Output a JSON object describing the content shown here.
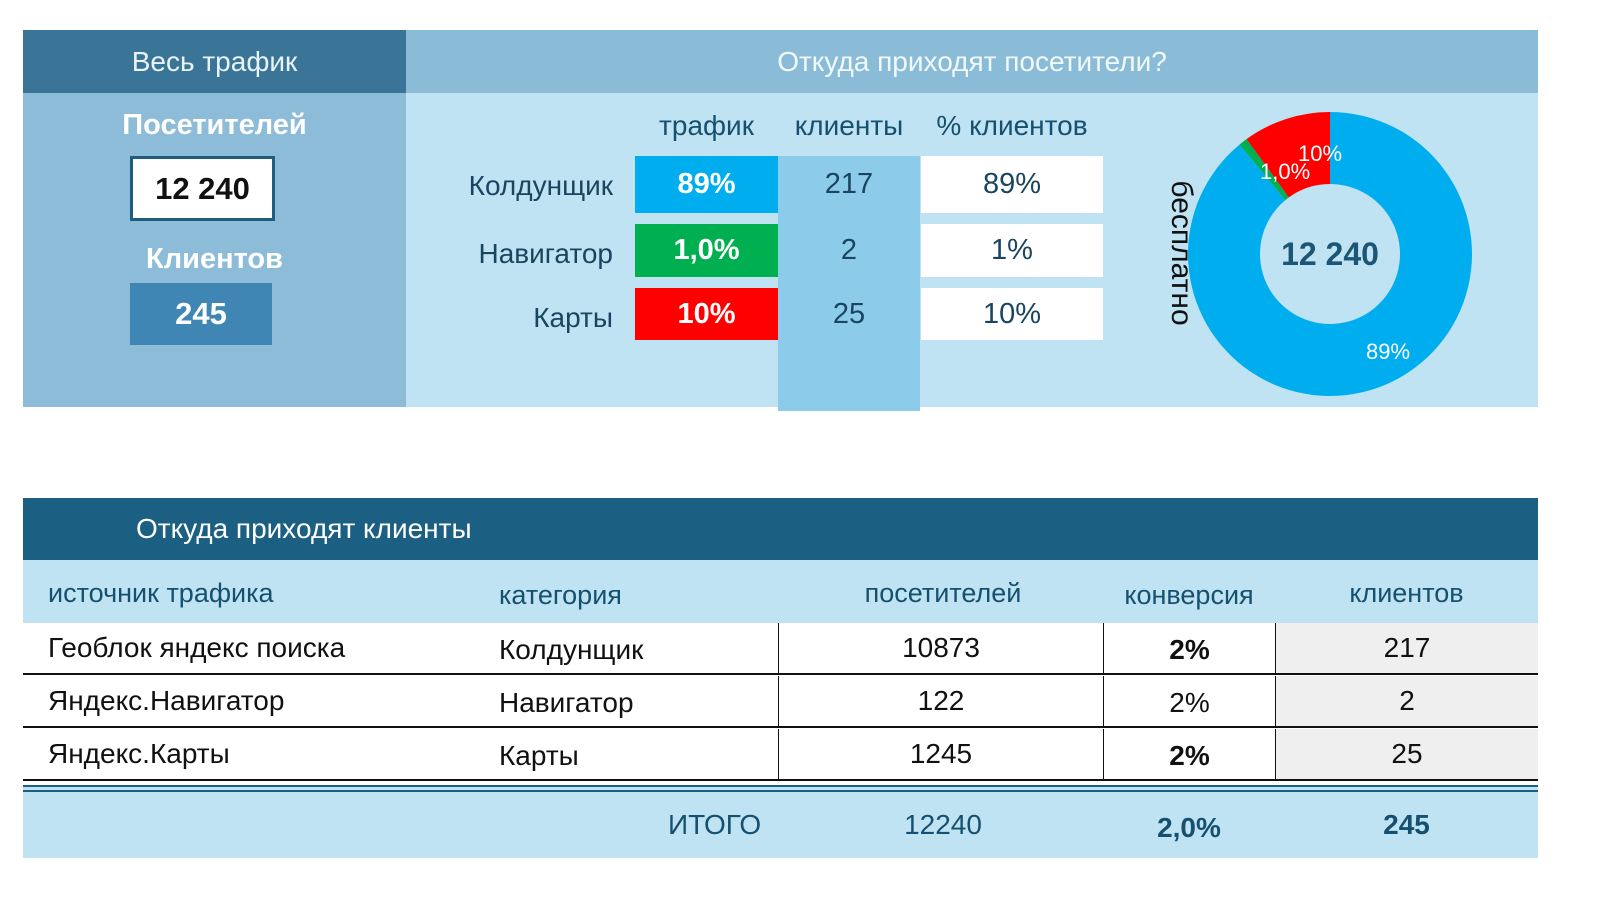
{
  "overview": {
    "header": "Весь трафик",
    "visitors_label": "Посетителей",
    "visitors_value": "12 240",
    "clients_label": "Клиентов",
    "clients_value": "245"
  },
  "sources": {
    "header": "Откуда приходят посетители?",
    "columns": [
      "трафик",
      "клиенты",
      "% клиентов"
    ],
    "rows": [
      {
        "name": "Колдунщик",
        "traffic": "89%",
        "clients": "217",
        "pct": "89%"
      },
      {
        "name": "Навигатор",
        "traffic": "1,0%",
        "clients": "2",
        "pct": "1%"
      },
      {
        "name": "Карты",
        "traffic": "10%",
        "clients": "25",
        "pct": "10%"
      }
    ],
    "side_label": "бесплатно",
    "colors": {
      "Колдунщик": "#00aeef",
      "Навигатор": "#00b050",
      "Карты": "#ff0000"
    }
  },
  "chart_data": {
    "type": "pie",
    "variant": "donut",
    "center_label": "12 240",
    "categories": [
      "Колдунщик",
      "Навигатор",
      "Карты"
    ],
    "values": [
      89,
      1.0,
      10
    ],
    "labels": [
      "89%",
      "1,0%",
      "10%"
    ],
    "colors": [
      "#00aeef",
      "#00b050",
      "#ff0000"
    ]
  },
  "clients_table": {
    "title": "Откуда приходят клиенты",
    "columns": [
      "источник трафика",
      "категория",
      "посетителей",
      "конверсия",
      "клиентов"
    ],
    "rows": [
      [
        "Геоблок яндекс поиска",
        "Колдунщик",
        "10873",
        "2%",
        "217"
      ],
      [
        "Яндекс.Навигатор",
        "Навигатор",
        "122",
        "2%",
        "2"
      ],
      [
        "Яндекс.Карты",
        "Карты",
        "1245",
        "2%",
        "25"
      ]
    ],
    "total": {
      "label": "ИТОГО",
      "visitors": "12240",
      "conversion": "2,0%",
      "clients": "245"
    }
  }
}
